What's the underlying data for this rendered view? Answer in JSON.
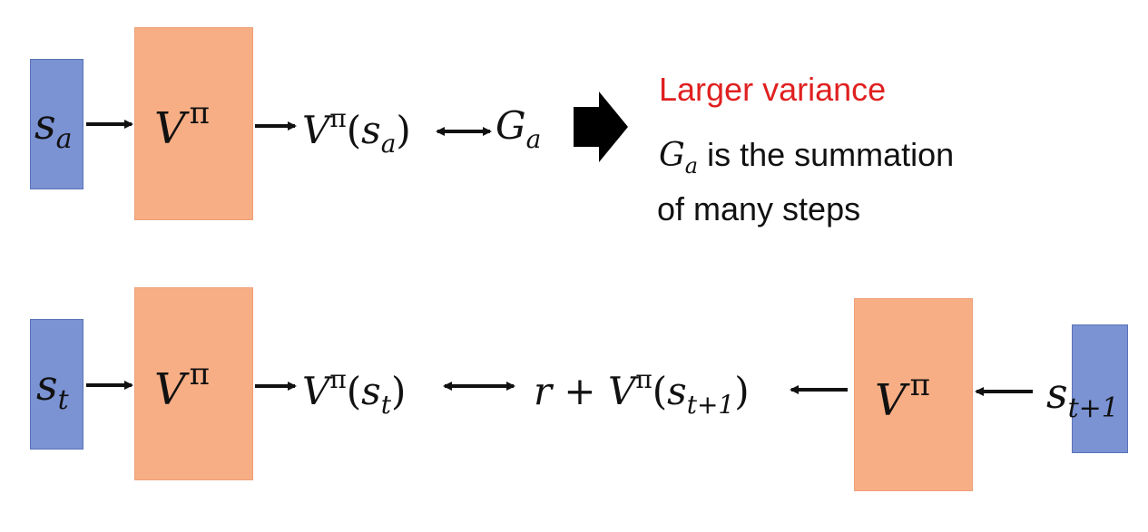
{
  "row1": {
    "state_symbol": "s",
    "state_sub": "a",
    "critic_symbol": "V",
    "critic_sup": "π",
    "output_symbol": "V",
    "output_sup": "π",
    "output_open": "(",
    "output_arg": "s",
    "output_arg_sub": "a",
    "output_close": ")",
    "target_symbol": "G",
    "target_sub": "a"
  },
  "note": {
    "title": "Larger variance",
    "title_color": "#e02020",
    "line1_symbol": "G",
    "line1_sub": "a",
    "line1_rest": " is the summation",
    "line2": "of many steps"
  },
  "row2": {
    "state_symbol": "s",
    "state_sub": "t",
    "critic_symbol": "V",
    "critic_sup": "π",
    "output_symbol": "V",
    "output_sup": "π",
    "output_open": "(",
    "output_arg": "s",
    "output_arg_sub": "t",
    "output_close": ")",
    "target_r": "r",
    "target_plus": " + ",
    "target_symbol": "V",
    "target_sup": "π",
    "target_open": "(",
    "target_arg": "s",
    "target_arg_sub": "t+1",
    "target_close": ")",
    "next_critic_symbol": "V",
    "next_critic_sup": "π",
    "next_state_symbol": "s",
    "next_state_sub": "t+1"
  },
  "colors": {
    "state_fill": "#7b92d3",
    "critic_fill": "#f7ae85",
    "note_red": "#e02020"
  }
}
